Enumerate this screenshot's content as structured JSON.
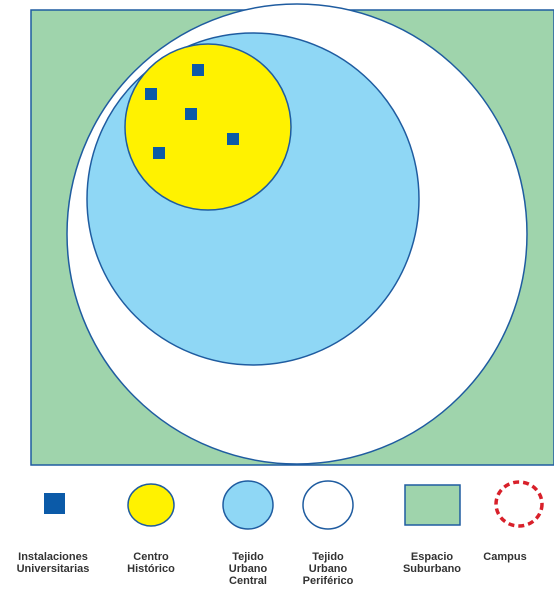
{
  "colors": {
    "suburbano_fill": "#9fd4ac",
    "periferico_fill": "#ffffff",
    "central_fill": "#8fd7f5",
    "historico_fill": "#fff200",
    "instalacion_fill": "#0b5aa8",
    "stroke": "#1f5ca0",
    "campus_stroke": "#d8202a"
  },
  "icons": {
    "instalaciones": "blue-square-icon",
    "historico": "yellow-circle-icon",
    "central": "light-blue-circle-icon",
    "periferico": "white-circle-icon",
    "suburbano": "green-rectangle-icon",
    "campus": "red-dashed-circle-icon"
  },
  "legend": {
    "instalaciones": "Instalaciones\nUniversitarias",
    "historico": "Centro\nHistórico",
    "central": "Tejido\nUrbano\nCentral",
    "periferico": "Tejido\nUrbano\nPeriférico",
    "suburbano": "Espacio\nSuburbano",
    "campus": "Campus"
  }
}
